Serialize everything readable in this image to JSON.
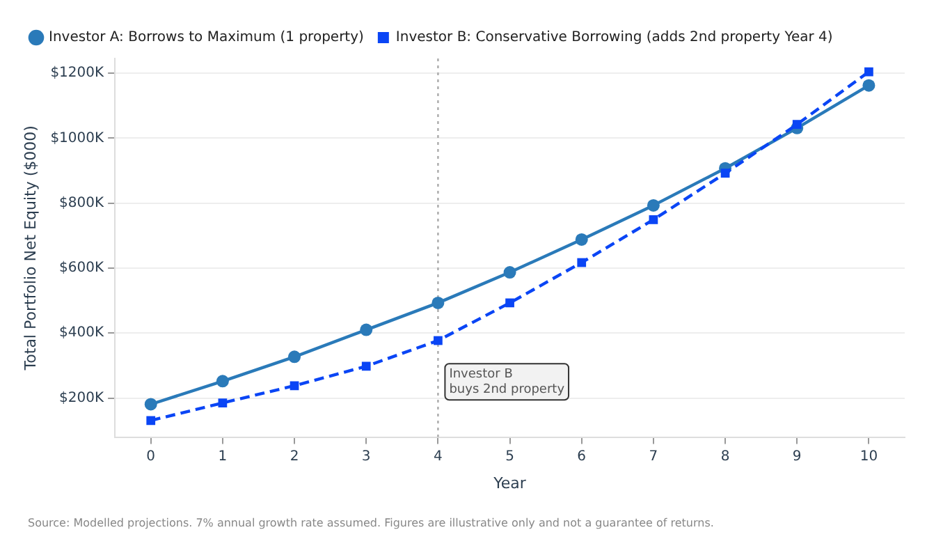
{
  "chart_data": {
    "type": "line",
    "xlabel": "Year",
    "ylabel": "Total Portfolio Net Equity ($000)",
    "x": [
      0,
      1,
      2,
      3,
      4,
      5,
      6,
      7,
      8,
      9,
      10
    ],
    "series": [
      {
        "name": "Investor A: Borrows to Maximum (1 property)",
        "color": "#2a7ab9",
        "values": [
          181,
          252,
          327,
          410,
          493,
          587,
          688,
          793,
          907,
          1031,
          1162
        ],
        "marker": "circle",
        "line_style": "solid"
      },
      {
        "name": "Investor B: Conservative Borrowing (adds 2nd property Year 4)",
        "color": "#0a45f5",
        "values": [
          131,
          185,
          238,
          298,
          377,
          493,
          617,
          749,
          892,
          1042,
          1204
        ],
        "marker": "square",
        "line_style": "dashed"
      }
    ],
    "xlim": [
      -0.5,
      10.5
    ],
    "xticks": [
      0,
      1,
      2,
      3,
      4,
      5,
      6,
      7,
      8,
      9,
      10
    ],
    "ylim": [
      80,
      1245
    ],
    "yticks": [
      {
        "value": 200,
        "label": "$200K"
      },
      {
        "value": 400,
        "label": "$400K"
      },
      {
        "value": 600,
        "label": "$600K"
      },
      {
        "value": 800,
        "label": "$800K"
      },
      {
        "value": 1000,
        "label": "$1000K"
      },
      {
        "value": 1200,
        "label": "$1200K"
      }
    ],
    "grid": "y",
    "legend": "top left",
    "ref_lines": [
      {
        "axis": "x",
        "value": 4,
        "color": "#aaaaaa",
        "line_style": "dotted"
      }
    ],
    "annotations": [
      {
        "text": "Investor B\nbuys 2nd property",
        "x": 4,
        "y": 250
      },
      "Source: Modelled projections. 7% annual growth rate assumed. Figures are illustrative only and not a guarantee of returns."
    ]
  }
}
